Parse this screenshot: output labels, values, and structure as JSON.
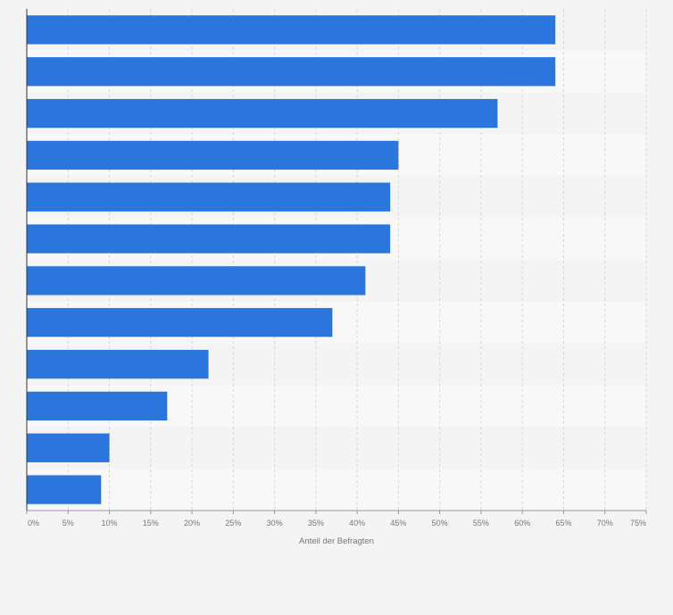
{
  "chart_data": {
    "type": "bar",
    "orientation": "horizontal",
    "values": [
      64,
      64,
      57,
      45,
      44,
      44,
      41,
      37,
      22,
      17,
      10,
      9
    ],
    "xlim": [
      0,
      75
    ],
    "xticks": [
      "0%",
      "5%",
      "10%",
      "15%",
      "20%",
      "25%",
      "30%",
      "35%",
      "40%",
      "45%",
      "50%",
      "55%",
      "60%",
      "65%",
      "70%",
      "75%"
    ],
    "xlabel": "Anteil der Befragten",
    "grid": true,
    "bar_color": "#2a76dd",
    "row_colors": [
      "#f4f4f4",
      "#f8f8f8"
    ],
    "grid_color": "#d6d6d6",
    "axis_color": "#333333",
    "text_color": "#777777"
  }
}
